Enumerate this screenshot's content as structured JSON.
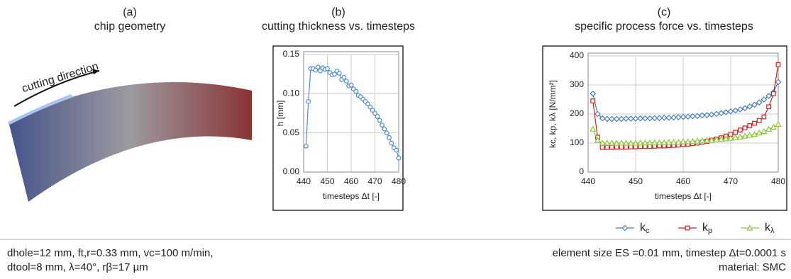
{
  "panel_a": {
    "label": "(a)",
    "title": "chip geometry",
    "annotation": "cutting direction"
  },
  "chart_data": [
    {
      "type": "line",
      "label": "(b)",
      "title": "cutting thickness vs. timesteps",
      "xlabel": "timesteps Δt [-]",
      "ylabel": "h [mm]",
      "xlim": [
        440,
        480
      ],
      "xticks": [
        440,
        450,
        460,
        470,
        480
      ],
      "ylim": [
        0,
        0.15
      ],
      "yticks": [
        {
          "value": 0,
          "label": "0.00"
        },
        0.05,
        {
          "value": 0.1,
          "label": "0.10"
        },
        0.15
      ],
      "grid": true,
      "x": [
        441,
        442,
        443,
        444,
        445,
        446,
        447,
        448,
        449,
        450,
        451,
        452,
        453,
        454,
        455,
        456,
        457,
        458,
        459,
        460,
        461,
        462,
        463,
        464,
        465,
        466,
        467,
        468,
        469,
        470,
        471,
        472,
        473,
        474,
        475,
        476,
        477,
        478,
        479,
        480
      ],
      "series": [
        {
          "color": "#4f8fca",
          "marker": "circle",
          "values": [
            0.033,
            0.09,
            0.132,
            0.132,
            0.13,
            0.134,
            0.129,
            0.133,
            0.131,
            0.132,
            0.127,
            0.124,
            0.125,
            0.129,
            0.126,
            0.118,
            0.121,
            0.116,
            0.11,
            0.111,
            0.106,
            0.103,
            0.098,
            0.096,
            0.093,
            0.09,
            0.087,
            0.083,
            0.079,
            0.075,
            0.071,
            0.066,
            0.06,
            0.055,
            0.05,
            0.044,
            0.037,
            0.031,
            0.028,
            0.018
          ]
        }
      ]
    },
    {
      "type": "line",
      "label": "(c)",
      "title": "specific process force vs. timesteps",
      "xlabel": "timesteps Δt [-]",
      "ylabel": "kc, kp, kλ [N/mm²]",
      "xlim": [
        440,
        480
      ],
      "xticks": [
        440,
        450,
        460,
        470,
        480
      ],
      "ylim": [
        0,
        400
      ],
      "yticks": [
        0,
        100,
        200,
        300,
        400
      ],
      "grid": true,
      "x": [
        441,
        442,
        443,
        444,
        445,
        446,
        447,
        448,
        449,
        450,
        451,
        452,
        453,
        454,
        455,
        456,
        457,
        458,
        459,
        460,
        461,
        462,
        463,
        464,
        465,
        466,
        467,
        468,
        469,
        470,
        471,
        472,
        473,
        474,
        475,
        476,
        477,
        478,
        479,
        480
      ],
      "series": [
        {
          "name": "kc",
          "color": "#4a7ebb",
          "marker": "diamond",
          "values": [
            270,
            200,
            185,
            183,
            183,
            183,
            183,
            184,
            184,
            184,
            185,
            185,
            185,
            186,
            186,
            187,
            187,
            188,
            189,
            190,
            191,
            192,
            193,
            195,
            196,
            198,
            200,
            203,
            206,
            209,
            212,
            216,
            220,
            226,
            232,
            240,
            250,
            262,
            275,
            310
          ]
        },
        {
          "name": "kp",
          "color": "#d42020",
          "marker": "square",
          "values": [
            245,
            120,
            85,
            85,
            85,
            86,
            86,
            86,
            87,
            87,
            88,
            88,
            88,
            89,
            90,
            90,
            91,
            92,
            93,
            95,
            96,
            98,
            100,
            103,
            106,
            110,
            114,
            118,
            124,
            130,
            137,
            145,
            152,
            160,
            168,
            178,
            190,
            225,
            270,
            370
          ]
        },
        {
          "name": "kλ",
          "color": "#8dc63f",
          "marker": "triangle",
          "values": [
            148,
            110,
            100,
            100,
            100,
            100,
            100,
            100,
            100,
            100,
            101,
            101,
            101,
            102,
            102,
            102,
            103,
            103,
            104,
            105,
            105,
            106,
            107,
            108,
            109,
            110,
            112,
            113,
            115,
            117,
            119,
            121,
            124,
            127,
            130,
            135,
            140,
            148,
            155,
            165
          ]
        }
      ],
      "legend": "bottom-right"
    }
  ],
  "footer": {
    "left": [
      "dhole=12 mm, ft,r=0.33 mm, vc=100 m/min,",
      "dtool=8 mm, λ=40°, rβ=17 µm"
    ],
    "right": [
      "element size ES =0.01 mm, timestep Δt=0.0001 s",
      "material: SMC"
    ]
  }
}
